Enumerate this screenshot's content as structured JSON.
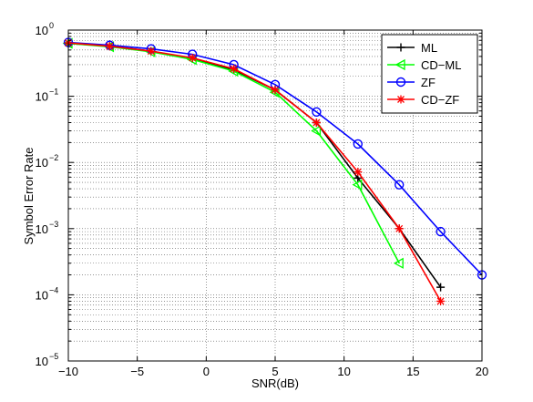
{
  "chart_data": {
    "type": "line",
    "title": "",
    "xlabel": "SNR(dB)",
    "ylabel": "Symbol Error Rate",
    "xlim": [
      -10,
      20
    ],
    "ylim": [
      1e-05,
      1
    ],
    "yscale": "log",
    "grid": true,
    "legend_position": "top-right",
    "x_ticks": [
      {
        "value": -10,
        "label": "−10"
      },
      {
        "value": -5,
        "label": "−5"
      },
      {
        "value": 0,
        "label": "0"
      },
      {
        "value": 5,
        "label": "5"
      },
      {
        "value": 10,
        "label": "10"
      },
      {
        "value": 15,
        "label": "15"
      },
      {
        "value": 20,
        "label": "20"
      }
    ],
    "y_ticks": [
      {
        "value": 1,
        "base": "10",
        "exp": "0"
      },
      {
        "value": 0.1,
        "base": "10",
        "exp": "−1"
      },
      {
        "value": 0.01,
        "base": "10",
        "exp": "−2"
      },
      {
        "value": 0.001,
        "base": "10",
        "exp": "−3"
      },
      {
        "value": 0.0001,
        "base": "10",
        "exp": "−4"
      },
      {
        "value": 1e-05,
        "base": "10",
        "exp": "−5"
      }
    ],
    "series": [
      {
        "name": "ML",
        "color": "#000000",
        "marker": "plus",
        "points": [
          [
            -10,
            0.63
          ],
          [
            -7,
            0.57
          ],
          [
            -4,
            0.48
          ],
          [
            -1,
            0.37
          ],
          [
            2,
            0.25
          ],
          [
            5,
            0.125
          ],
          [
            8,
            0.04
          ],
          [
            11,
            0.0058
          ],
          [
            14,
            0.001
          ],
          [
            17,
            0.00013
          ]
        ]
      },
      {
        "name": "CD−ML",
        "color": "#00ff00",
        "marker": "triangle-left",
        "points": [
          [
            -10,
            0.63
          ],
          [
            -7,
            0.56
          ],
          [
            -4,
            0.47
          ],
          [
            -1,
            0.36
          ],
          [
            2,
            0.24
          ],
          [
            5,
            0.115
          ],
          [
            8,
            0.03
          ],
          [
            11,
            0.0046
          ],
          [
            14,
            0.0003
          ]
        ]
      },
      {
        "name": "ZF",
        "color": "#0000ff",
        "marker": "circle",
        "points": [
          [
            -10,
            0.65
          ],
          [
            -7,
            0.59
          ],
          [
            -4,
            0.52
          ],
          [
            -1,
            0.43
          ],
          [
            2,
            0.3
          ],
          [
            5,
            0.15
          ],
          [
            8,
            0.058
          ],
          [
            11,
            0.019
          ],
          [
            14,
            0.0046
          ],
          [
            17,
            0.0009
          ],
          [
            20,
            0.0002
          ]
        ]
      },
      {
        "name": "CD−ZF",
        "color": "#ff0000",
        "marker": "asterisk",
        "points": [
          [
            -10,
            0.64
          ],
          [
            -7,
            0.57
          ],
          [
            -4,
            0.48
          ],
          [
            -1,
            0.38
          ],
          [
            2,
            0.26
          ],
          [
            5,
            0.125
          ],
          [
            8,
            0.04
          ],
          [
            11,
            0.0072
          ],
          [
            14,
            0.001
          ],
          [
            17,
            8e-05
          ]
        ]
      }
    ]
  }
}
